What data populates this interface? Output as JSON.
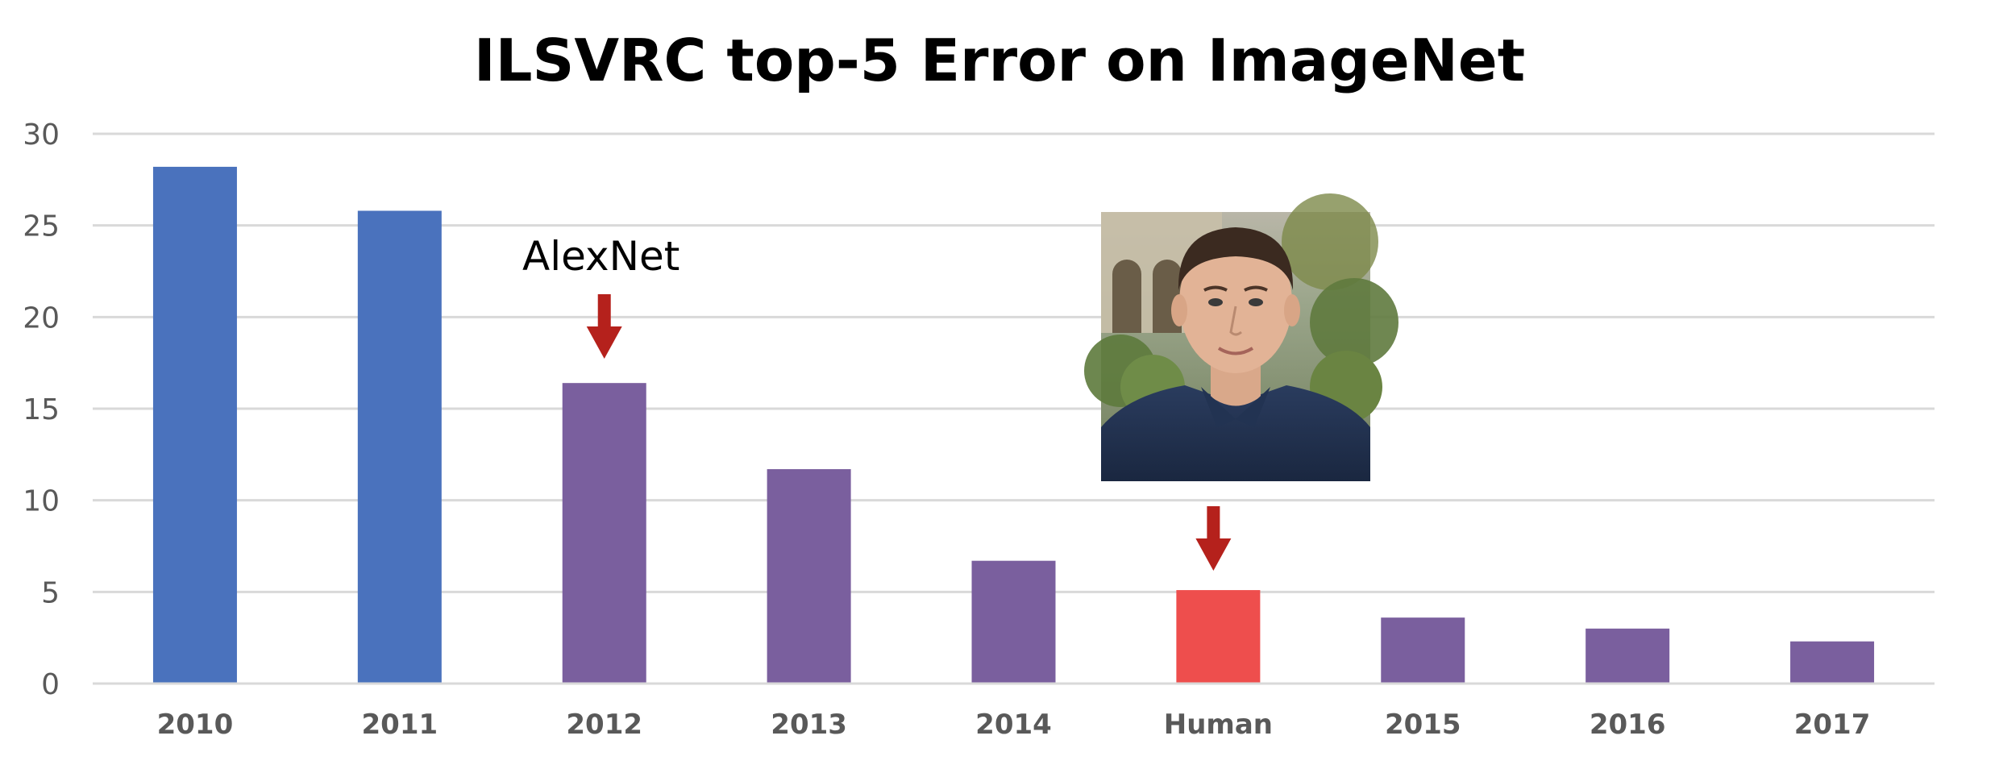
{
  "chart_data": {
    "type": "bar",
    "title": "ILSVRC top-5 Error on ImageNet",
    "xlabel": "",
    "ylabel": "",
    "ylim": [
      0,
      30
    ],
    "yticks": [
      "0",
      "5",
      "10",
      "15",
      "20",
      "25",
      "30"
    ],
    "grid": true,
    "legend": "none",
    "categories": [
      "2010",
      "2011",
      "2012",
      "2013",
      "2014",
      "Human",
      "2015",
      "2016",
      "2017"
    ],
    "values": [
      28.2,
      25.8,
      16.4,
      11.7,
      6.7,
      5.1,
      3.6,
      3.0,
      2.3
    ],
    "bar_colors": [
      "#4a72bd",
      "#4a72bd",
      "#7a5f9e",
      "#7a5f9e",
      "#7a5f9e",
      "#ee4e4d",
      "#7a5f9e",
      "#7a5f9e",
      "#7a5f9e"
    ],
    "annotations": [
      {
        "text": "AlexNet",
        "category": "2012",
        "marker": "arrow",
        "color": "#b5211c"
      },
      {
        "text": "",
        "category": "Human",
        "marker": "arrow-with-photo",
        "color": "#b5211c",
        "photo": "portrait-of-man"
      }
    ],
    "gridline_color": "#d9d9d9"
  }
}
